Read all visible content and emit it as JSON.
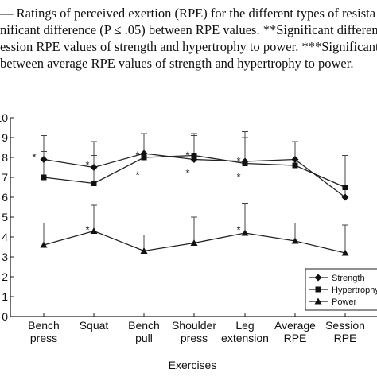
{
  "caption_lines": [
    "— Ratings of perceived exertion (RPE) for the different types of resista",
    "nificant difference (P ≤ .05) between RPE values. **Significant difference",
    "ession RPE values of strength and hypertrophy to power. ***Significant d",
    "between average RPE values of strength and hypertrophy to power."
  ],
  "chart_data": {
    "type": "line",
    "categories": [
      "Bench press",
      "Squat",
      "Bench pull",
      "Shoulder press",
      "Leg extension",
      "Average RPE",
      "Session RPE"
    ],
    "xlabel": "Exercises",
    "ylabel": "",
    "ylim": [
      0,
      10
    ],
    "yticks": [
      "0",
      "1",
      "2",
      "3",
      "4",
      "5",
      "6",
      "7",
      "8",
      "9",
      "10"
    ],
    "series": [
      {
        "name": "Strength",
        "marker": "diamond",
        "values": [
          7.9,
          7.5,
          8.2,
          7.9,
          7.8,
          7.9,
          6.0
        ],
        "sd": [
          1.2,
          1.3,
          1.0,
          1.2,
          1.5,
          0.9,
          2.1
        ]
      },
      {
        "name": "Hypertrophy",
        "marker": "square",
        "values": [
          7.0,
          6.7,
          8.0,
          8.1,
          7.7,
          7.6,
          6.5
        ],
        "sd": [
          1.3,
          1.4,
          1.2,
          1.1,
          1.3,
          1.2,
          1.6
        ]
      },
      {
        "name": "Power",
        "marker": "triangle",
        "values": [
          3.6,
          4.3,
          3.3,
          3.7,
          4.2,
          3.8,
          3.2
        ],
        "sd": [
          1.1,
          1.3,
          0.8,
          1.3,
          1.5,
          0.9,
          1.4
        ]
      }
    ],
    "annotations": [
      {
        "text": "*",
        "x": 0,
        "y": 8.2
      },
      {
        "text": "*",
        "x": 1,
        "y": 7.8
      },
      {
        "text": "*",
        "x": 2,
        "y": 8.3
      },
      {
        "text": "*",
        "x": 2,
        "y": 7.3
      },
      {
        "text": "*",
        "x": 3,
        "y": 8.3
      },
      {
        "text": "*",
        "x": 3,
        "y": 7.4
      },
      {
        "text": "*",
        "x": 4,
        "y": 8.0
      },
      {
        "text": "*",
        "x": 4,
        "y": 7.2
      },
      {
        "text": "*",
        "x": 1,
        "y": 4.55
      },
      {
        "text": "*",
        "x": 4,
        "y": 4.55
      }
    ],
    "legend_position": "bottom-right",
    "grid": false
  }
}
